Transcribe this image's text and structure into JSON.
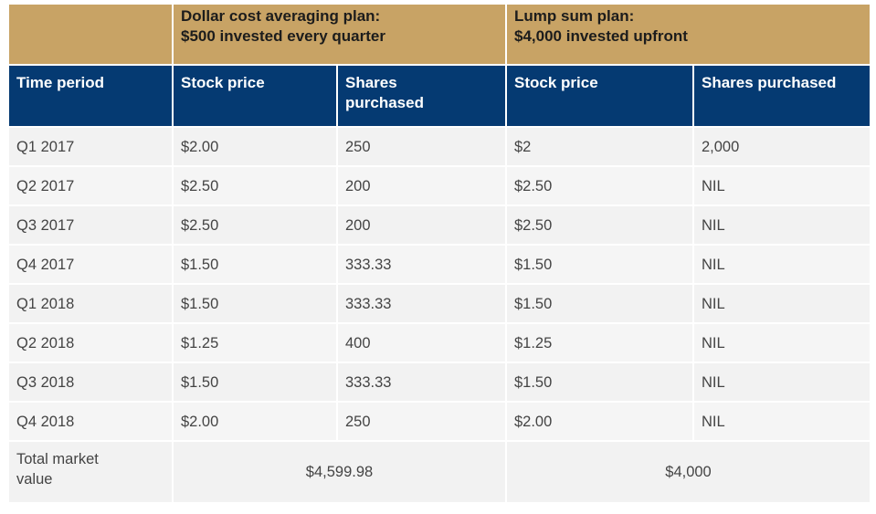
{
  "groups": {
    "dca_line1": "Dollar cost averaging plan:",
    "dca_line2": "$500 invested every quarter",
    "lump_line1": "Lump sum plan:",
    "lump_line2": "$4,000 invested upfront"
  },
  "headers": {
    "time_period": "Time period",
    "dca_stock_price": "Stock price",
    "dca_shares_line1": "Shares",
    "dca_shares_line2": "purchased",
    "lump_stock_price": "Stock price",
    "lump_shares": "Shares purchased"
  },
  "rows": [
    {
      "period": "Q1 2017",
      "dca_price": "$2.00",
      "dca_shares": "250",
      "lump_price": "$2",
      "lump_shares": "2,000"
    },
    {
      "period": "Q2 2017",
      "dca_price": "$2.50",
      "dca_shares": "200",
      "lump_price": "$2.50",
      "lump_shares": "NIL"
    },
    {
      "period": "Q3 2017",
      "dca_price": "$2.50",
      "dca_shares": "200",
      "lump_price": "$2.50",
      "lump_shares": "NIL"
    },
    {
      "period": "Q4 2017",
      "dca_price": "$1.50",
      "dca_shares": "333.33",
      "lump_price": "$1.50",
      "lump_shares": "NIL"
    },
    {
      "period": "Q1 2018",
      "dca_price": "$1.50",
      "dca_shares": "333.33",
      "lump_price": "$1.50",
      "lump_shares": "NIL"
    },
    {
      "period": "Q2 2018",
      "dca_price": "$1.25",
      "dca_shares": "400",
      "lump_price": "$1.25",
      "lump_shares": "NIL"
    },
    {
      "period": "Q3 2018",
      "dca_price": "$1.50",
      "dca_shares": "333.33",
      "lump_price": "$1.50",
      "lump_shares": "NIL"
    },
    {
      "period": "Q4 2018",
      "dca_price": "$2.00",
      "dca_shares": "250",
      "lump_price": "$2.00",
      "lump_shares": "NIL"
    }
  ],
  "total": {
    "label_line1": "Total market",
    "label_line2": "value",
    "dca_value": "$4,599.98",
    "lump_value": "$4,000"
  },
  "colors": {
    "group_header_bg": "#c8a365",
    "column_header_bg": "#053a72",
    "row_bg": "#f2f2f2"
  }
}
